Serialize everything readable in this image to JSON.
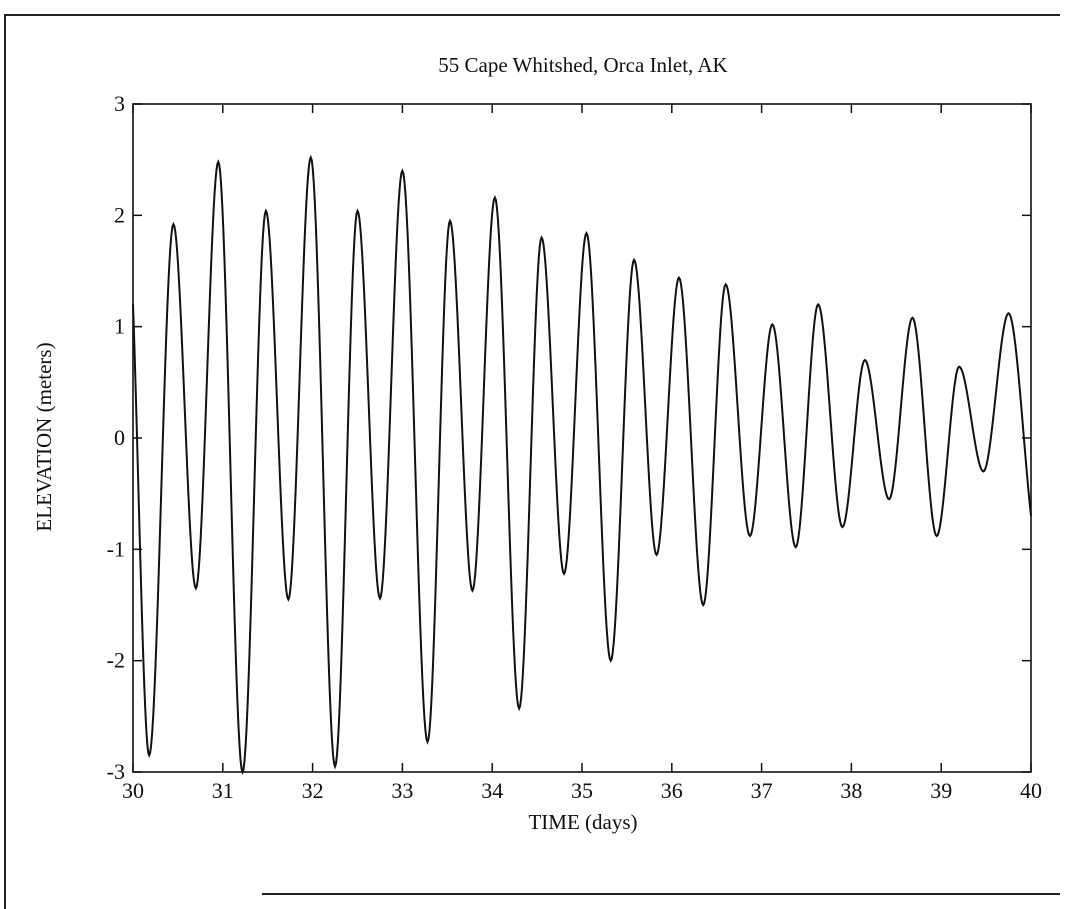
{
  "chart_data": {
    "type": "line",
    "title": "55 Cape Whitshed, Orca Inlet, AK",
    "xlabel": "TIME (days)",
    "ylabel": "ELEVATION (meters)",
    "xlim": [
      30,
      40
    ],
    "ylim": [
      -3,
      3
    ],
    "xticks": [
      "30",
      "31",
      "32",
      "33",
      "34",
      "35",
      "36",
      "37",
      "38",
      "39",
      "40"
    ],
    "yticks": [
      "-3",
      "-2",
      "-1",
      "0",
      "1",
      "2",
      "3"
    ],
    "grid": false,
    "legend": "none",
    "line_color": "#111111",
    "series": [
      {
        "x": [
          30.0,
          30.18,
          30.45,
          30.7,
          30.95,
          31.22,
          31.48,
          31.73,
          31.98,
          32.25,
          32.5,
          32.75,
          33.0,
          33.28,
          33.53,
          33.78,
          34.03,
          34.3,
          34.55,
          34.8,
          35.05,
          35.32,
          35.58,
          35.83,
          36.08,
          36.35,
          36.6,
          36.87,
          37.12,
          37.38,
          37.63,
          37.9,
          38.15,
          38.42,
          38.68,
          38.95,
          39.2,
          39.47,
          39.75,
          40.0
        ],
        "y": [
          1.2,
          -2.85,
          1.92,
          -1.35,
          2.48,
          -3.0,
          2.04,
          -1.45,
          2.52,
          -2.95,
          2.04,
          -1.44,
          2.4,
          -2.73,
          1.95,
          -1.37,
          2.16,
          -2.43,
          1.8,
          -1.22,
          1.84,
          -2.0,
          1.6,
          -1.05,
          1.44,
          -1.5,
          1.38,
          -0.88,
          1.02,
          -0.98,
          1.2,
          -0.8,
          0.7,
          -0.55,
          1.08,
          -0.88,
          0.64,
          -0.3,
          1.12,
          -0.7
        ]
      }
    ]
  }
}
